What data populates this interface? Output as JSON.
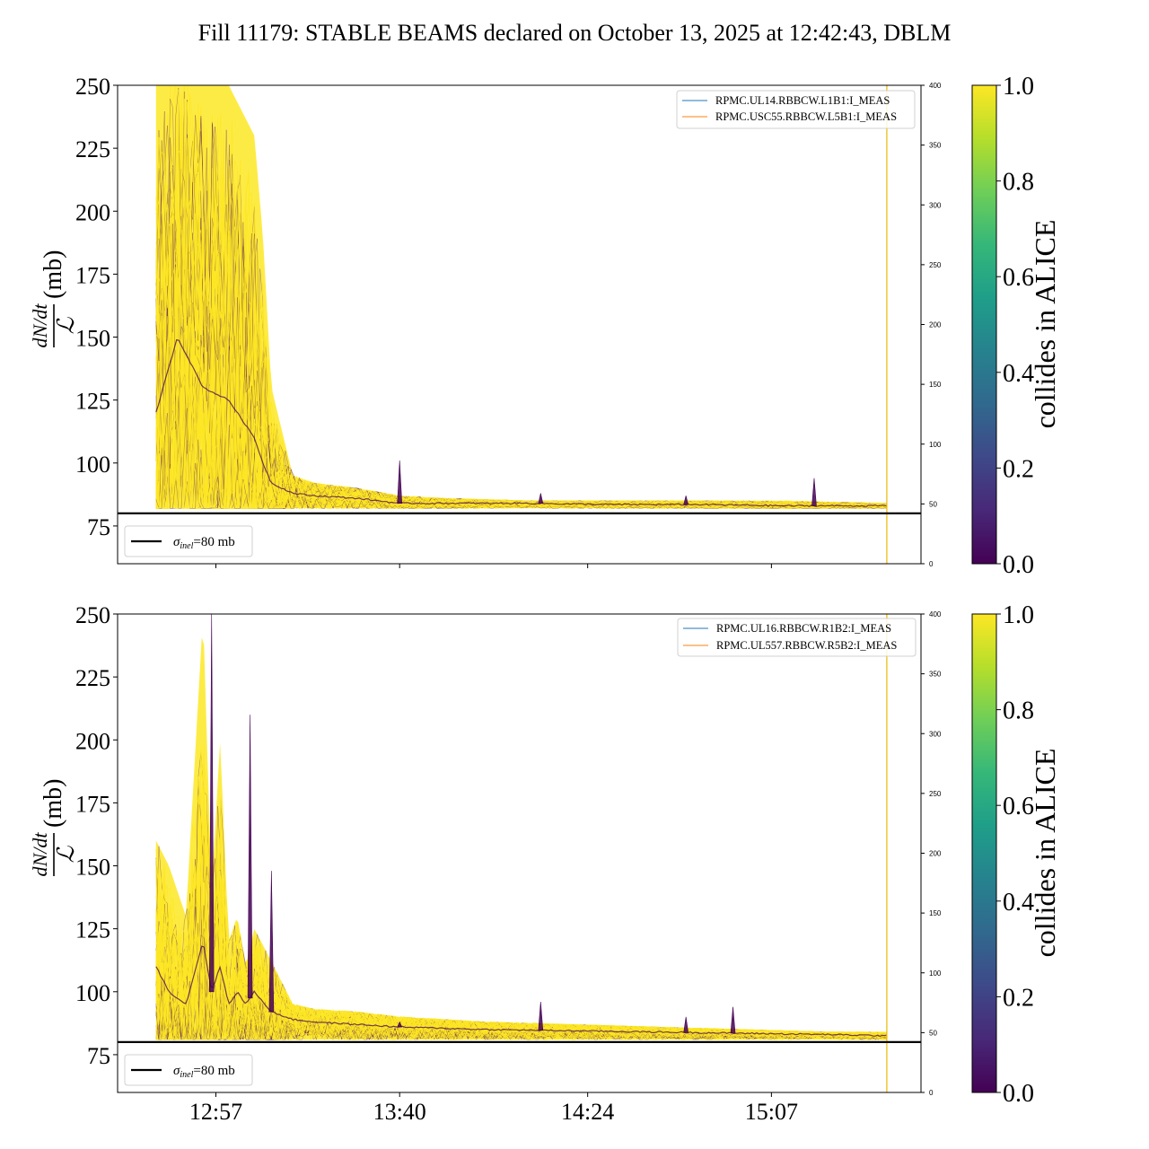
{
  "figure": {
    "title": "Fill 11179: STABLE BEAMS declared on October 13, 2025 at 12:42:43, DBLM"
  },
  "colors": {
    "yellow": "#fde725",
    "purple": "#440154",
    "mid_purple": "#6a3d7a",
    "sigma_line": "#000000",
    "legend_blue": "#1f77b4",
    "legend_orange": "#ff7f0e",
    "vline": "#e8b800",
    "viridis": [
      "#440154",
      "#482878",
      "#3e4989",
      "#31688e",
      "#26828e",
      "#1f9e89",
      "#35b779",
      "#6ece58",
      "#b5de2b",
      "#fde725"
    ]
  },
  "shared": {
    "ylabel_num": "dN/dt",
    "ylabel_den": "ℒ",
    "ylabel_unit": "(mb)",
    "colorbar_label": "collides in ALICE",
    "sigma_label": "=80 mb",
    "sigma_symbol": "σ",
    "sigma_sub": "inel",
    "x_ticks": [
      "12:57",
      "13:40",
      "14:24",
      "15:07"
    ]
  },
  "chart_data": [
    {
      "type": "line",
      "panel": "top",
      "x_ticks": [
        "12:57",
        "13:40",
        "14:24",
        "15:07"
      ],
      "x_tick_minutes": [
        777,
        820,
        864,
        907
      ],
      "x_range_minutes": [
        754,
        942
      ],
      "ylim": [
        60,
        250
      ],
      "y_ticks": [
        75,
        100,
        125,
        150,
        175,
        200,
        225,
        250
      ],
      "y2lim": [
        0,
        400
      ],
      "y2_ticks": [
        0,
        50,
        100,
        150,
        200,
        250,
        300,
        350,
        400
      ],
      "sigma_inel": 80,
      "legend": [
        "RPMC.UL14.RBBCW.L1B1:I_MEAS",
        "RPMC.USC55.RBBCW.L5B1:I_MEAS"
      ],
      "vline_minutes": 934,
      "colorbar": {
        "range": [
          0.0,
          1.0
        ],
        "ticks": [
          "0.0",
          "0.2",
          "0.4",
          "0.6",
          "0.8",
          "1.0"
        ]
      },
      "band_envelope": {
        "x_minutes": [
          763,
          768,
          774,
          780,
          786,
          788,
          790,
          795,
          800,
          810,
          820,
          830,
          850,
          870,
          890,
          910,
          934
        ],
        "upper": [
          250,
          250,
          250,
          250,
          230,
          190,
          130,
          95,
          92,
          90,
          87,
          86,
          85,
          85,
          85,
          85,
          84
        ],
        "core": [
          120,
          150,
          130,
          125,
          110,
          100,
          92,
          88,
          87,
          86,
          84,
          84,
          84,
          83.5,
          83.5,
          83,
          83
        ],
        "lower": [
          82,
          82,
          82,
          82,
          82,
          82,
          82,
          82,
          82,
          82,
          82,
          82,
          82,
          82,
          82,
          82,
          82
        ]
      },
      "spikes": [
        {
          "x_minutes": 820,
          "y": 101
        },
        {
          "x_minutes": 853,
          "y": 88
        },
        {
          "x_minutes": 887,
          "y": 87
        },
        {
          "x_minutes": 917,
          "y": 94
        }
      ]
    },
    {
      "type": "line",
      "panel": "bottom",
      "x_ticks": [
        "12:57",
        "13:40",
        "14:24",
        "15:07"
      ],
      "x_tick_minutes": [
        777,
        820,
        864,
        907
      ],
      "x_range_minutes": [
        754,
        942
      ],
      "ylim": [
        60,
        250
      ],
      "y_ticks": [
        75,
        100,
        125,
        150,
        175,
        200,
        225,
        250
      ],
      "y2lim": [
        0,
        400
      ],
      "y2_ticks": [
        0,
        50,
        100,
        150,
        200,
        250,
        300,
        350,
        400
      ],
      "sigma_inel": 80,
      "legend": [
        "RPMC.UL16.RBBCW.R1B2:I_MEAS",
        "RPMC.UL557.RBBCW.R5B2:I_MEAS"
      ],
      "vline_minutes": 934,
      "colorbar": {
        "range": [
          0.0,
          1.0
        ],
        "ticks": [
          "0.0",
          "0.2",
          "0.4",
          "0.6",
          "0.8",
          "1.0"
        ]
      },
      "band_envelope": {
        "x_minutes": [
          763,
          766,
          770,
          774,
          776,
          778,
          780,
          782,
          784,
          786,
          790,
          795,
          800,
          810,
          820,
          840,
          860,
          880,
          900,
          920,
          934
        ],
        "upper": [
          160,
          150,
          130,
          250,
          140,
          200,
          120,
          130,
          110,
          125,
          112,
          95,
          93,
          92,
          90,
          88,
          87,
          86,
          85,
          84,
          84
        ],
        "core": [
          110,
          100,
          95,
          120,
          100,
          110,
          95,
          100,
          95,
          100,
          92,
          89,
          88,
          87,
          86,
          85,
          84.5,
          84,
          83.5,
          83,
          82.5
        ],
        "lower": [
          81,
          81,
          81,
          81,
          81,
          81,
          81,
          81,
          81,
          81,
          81,
          81,
          81,
          81,
          81,
          81,
          81,
          81,
          81,
          81,
          81
        ]
      },
      "spikes": [
        {
          "x_minutes": 776,
          "y": 250
        },
        {
          "x_minutes": 785,
          "y": 210
        },
        {
          "x_minutes": 790,
          "y": 148
        },
        {
          "x_minutes": 820,
          "y": 88
        },
        {
          "x_minutes": 853,
          "y": 96
        },
        {
          "x_minutes": 887,
          "y": 90
        },
        {
          "x_minutes": 898,
          "y": 94
        }
      ]
    }
  ]
}
